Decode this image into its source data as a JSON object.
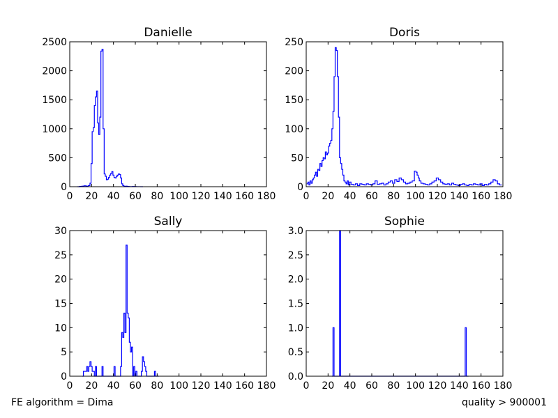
{
  "footer": {
    "left_text": "FE algorithm = Dima",
    "right_text": "quality > 900001"
  },
  "colors": {
    "line": "#0000ff",
    "axes": "#000000",
    "background": "#ffffff"
  },
  "chart_data": [
    {
      "type": "line",
      "title": "Danielle",
      "xlabel": "",
      "ylabel": "",
      "xlim": [
        0,
        180
      ],
      "ylim": [
        0,
        2500
      ],
      "x_ticks": [
        0,
        20,
        40,
        60,
        80,
        100,
        120,
        140,
        160,
        180
      ],
      "y_ticks": [
        0,
        500,
        1000,
        1500,
        2000,
        2500
      ],
      "y_tick_labels": [
        "0",
        "500",
        "1000",
        "1500",
        "2000",
        "2500"
      ],
      "grid": false,
      "series": [
        {
          "x": [
            8,
            10,
            12,
            14,
            16,
            18,
            19,
            20,
            21,
            22,
            23,
            24,
            25,
            26,
            27,
            28,
            29,
            30,
            31,
            32,
            33,
            34,
            35,
            36,
            37,
            38,
            39,
            40,
            41,
            42,
            43,
            44,
            45,
            46,
            47,
            48,
            49,
            50,
            51,
            52,
            53,
            54,
            55,
            56,
            58,
            60,
            62,
            64,
            66
          ],
          "y": [
            0,
            5,
            10,
            15,
            10,
            20,
            60,
            400,
            950,
            1020,
            1400,
            1550,
            1650,
            1100,
            900,
            1200,
            2340,
            2370,
            1000,
            220,
            180,
            120,
            130,
            160,
            200,
            230,
            260,
            200,
            160,
            150,
            180,
            200,
            220,
            210,
            150,
            50,
            20,
            10,
            5,
            10,
            5,
            3,
            2,
            1,
            3,
            2,
            1,
            1,
            0
          ]
        }
      ]
    },
    {
      "type": "line",
      "title": "Doris",
      "xlabel": "",
      "ylabel": "",
      "xlim": [
        0,
        180
      ],
      "ylim": [
        0,
        250
      ],
      "x_ticks": [
        0,
        20,
        40,
        60,
        80,
        100,
        120,
        140,
        160,
        180
      ],
      "y_ticks": [
        0,
        50,
        100,
        150,
        200,
        250
      ],
      "y_tick_labels": [
        "0",
        "50",
        "100",
        "150",
        "200",
        "250"
      ],
      "grid": false,
      "series": [
        {
          "x": [
            1,
            2,
            3,
            4,
            5,
            6,
            7,
            8,
            9,
            10,
            11,
            12,
            13,
            14,
            15,
            16,
            17,
            18,
            19,
            20,
            21,
            22,
            23,
            24,
            25,
            26,
            27,
            28,
            29,
            30,
            31,
            32,
            33,
            34,
            35,
            36,
            37,
            38,
            39,
            40,
            42,
            44,
            46,
            48,
            50,
            52,
            54,
            56,
            58,
            60,
            62,
            64,
            66,
            68,
            70,
            72,
            74,
            76,
            78,
            80,
            82,
            84,
            86,
            88,
            90,
            92,
            94,
            96,
            98,
            100,
            101,
            102,
            103,
            104,
            106,
            108,
            110,
            112,
            114,
            116,
            118,
            120,
            122,
            124,
            126,
            128,
            130,
            132,
            134,
            136,
            138,
            140,
            142,
            144,
            146,
            148,
            150,
            152,
            154,
            156,
            158,
            160,
            162,
            164,
            166,
            168,
            170,
            172,
            174,
            176,
            178
          ],
          "y": [
            5,
            8,
            3,
            10,
            6,
            12,
            15,
            20,
            25,
            18,
            30,
            28,
            40,
            35,
            45,
            50,
            48,
            60,
            55,
            58,
            70,
            75,
            80,
            100,
            130,
            190,
            240,
            235,
            190,
            120,
            50,
            40,
            30,
            20,
            10,
            8,
            5,
            10,
            3,
            8,
            4,
            3,
            5,
            2,
            5,
            4,
            3,
            5,
            4,
            3,
            5,
            10,
            4,
            5,
            6,
            3,
            5,
            8,
            10,
            6,
            12,
            9,
            15,
            12,
            8,
            5,
            6,
            8,
            10,
            27,
            25,
            20,
            15,
            10,
            6,
            5,
            4,
            3,
            5,
            8,
            10,
            15,
            12,
            8,
            5,
            4,
            5,
            3,
            6,
            4,
            3,
            2,
            4,
            5,
            3,
            2,
            4,
            3,
            5,
            4,
            3,
            5,
            2,
            4,
            3,
            5,
            8,
            12,
            10,
            5,
            3
          ]
        }
      ]
    },
    {
      "type": "line",
      "title": "Sally",
      "xlabel": "",
      "ylabel": "",
      "xlim": [
        0,
        180
      ],
      "ylim": [
        0,
        30
      ],
      "x_ticks": [
        0,
        20,
        40,
        60,
        80,
        100,
        120,
        140,
        160,
        180
      ],
      "y_ticks": [
        0,
        5,
        10,
        15,
        20,
        25,
        30
      ],
      "y_tick_labels": [
        "0",
        "5",
        "10",
        "15",
        "20",
        "25",
        "30"
      ],
      "grid": false,
      "series": [
        {
          "x": [
            12,
            13,
            14,
            15,
            16,
            17,
            18,
            19,
            20,
            21,
            22,
            23,
            24,
            25,
            26,
            27,
            28,
            29,
            30,
            31,
            32,
            33,
            34,
            35,
            36,
            37,
            38,
            39,
            40,
            41,
            42,
            43,
            44,
            45,
            46,
            47,
            48,
            49,
            50,
            51,
            52,
            53,
            54,
            55,
            56,
            57,
            58,
            59,
            60,
            61,
            62,
            63,
            64,
            65,
            66,
            67,
            68,
            69,
            70,
            71,
            72,
            73,
            74,
            75,
            76,
            77,
            78,
            79,
            80,
            81
          ],
          "y": [
            0,
            1,
            1,
            1,
            2,
            1,
            2,
            3,
            2,
            1,
            1,
            0,
            2,
            0,
            0,
            0,
            0,
            0,
            2,
            0,
            0,
            0,
            0,
            0,
            0,
            0,
            0,
            0,
            0,
            2,
            0,
            0,
            0,
            0,
            0,
            2,
            9,
            8,
            13,
            9,
            27,
            13,
            12,
            7,
            5,
            6,
            0,
            2,
            0,
            1,
            0,
            0,
            0,
            0,
            1,
            4,
            3,
            2,
            1,
            0,
            0,
            0,
            0,
            0,
            0,
            0,
            1,
            0,
            0,
            0
          ]
        }
      ]
    },
    {
      "type": "line",
      "title": "Sophie",
      "xlabel": "",
      "ylabel": "",
      "xlim": [
        0,
        180
      ],
      "ylim": [
        0,
        3
      ],
      "x_ticks": [
        0,
        20,
        40,
        60,
        80,
        100,
        120,
        140,
        160,
        180
      ],
      "y_ticks": [
        0,
        0.5,
        1.0,
        1.5,
        2.0,
        2.5,
        3.0
      ],
      "y_tick_labels": [
        "0.0",
        "0.5",
        "1.0",
        "1.5",
        "2.0",
        "2.5",
        "3.0"
      ],
      "grid": false,
      "series": [
        {
          "x": [
            24,
            25,
            26,
            27,
            30,
            31,
            32,
            33,
            145,
            146,
            147,
            148
          ],
          "y": [
            0,
            1,
            0,
            0,
            0,
            3,
            0,
            0,
            0,
            1,
            0,
            0
          ]
        }
      ]
    }
  ]
}
